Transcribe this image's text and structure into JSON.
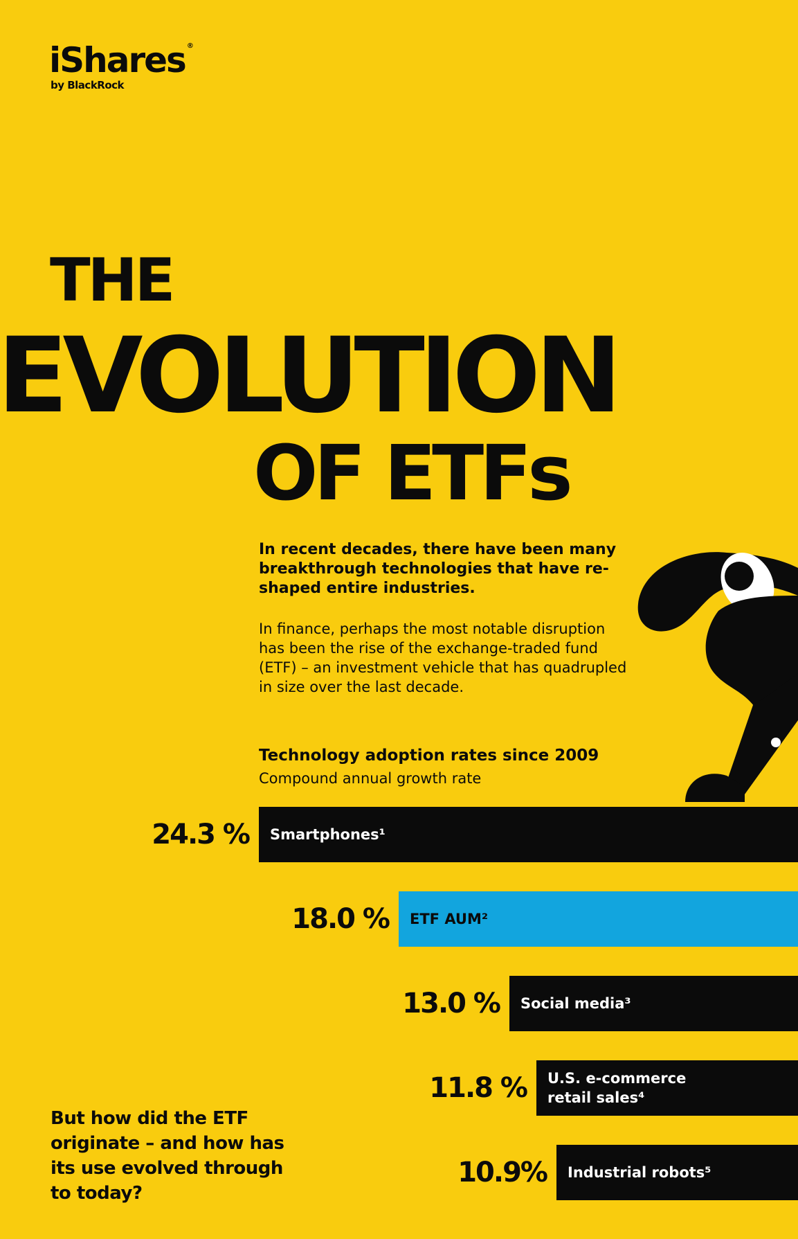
{
  "logo": {
    "brand": "iShares",
    "registered": "®",
    "sub": "by BlackRock"
  },
  "title": {
    "line1": "THE",
    "line2": "EVOLUTION",
    "line3": "OF ETFs"
  },
  "intro": {
    "lead": "In recent decades, there have been many breakthrough technologies that have re-shaped entire industries.",
    "body": "In finance, perhaps the most notable disruption has been the rise of the exchange-traded fund (ETF) – an investment vehicle that has quadrupled in size over the last decade."
  },
  "question": "But how did the ETF originate – and how has its use evolved through to today?",
  "colors": {
    "background": "#F9CC0E",
    "dark": "#0b0b0b",
    "accent": "#12A5DE"
  },
  "chart_data": {
    "type": "bar",
    "orientation": "horizontal",
    "title": "Technology adoption rates since 2009",
    "subtitle": "Compound annual growth rate",
    "unit": "%",
    "bars": [
      {
        "label": "Smartphones¹",
        "value": 24.3,
        "value_label": "24.3 %",
        "color": "#0b0b0b"
      },
      {
        "label": "ETF AUM²",
        "value": 18.0,
        "value_label": "18.0 %",
        "color": "#12A5DE",
        "dark_text": true
      },
      {
        "label": "Social media³",
        "value": 13.0,
        "value_label": "13.0 %",
        "color": "#0b0b0b"
      },
      {
        "label": "U.S. e-commerce\nretail sales⁴",
        "value": 11.8,
        "value_label": "11.8 %",
        "color": "#0b0b0b"
      },
      {
        "label": "Industrial robots⁵",
        "value": 10.9,
        "value_label": "10.9%",
        "color": "#0b0b0b"
      }
    ]
  }
}
